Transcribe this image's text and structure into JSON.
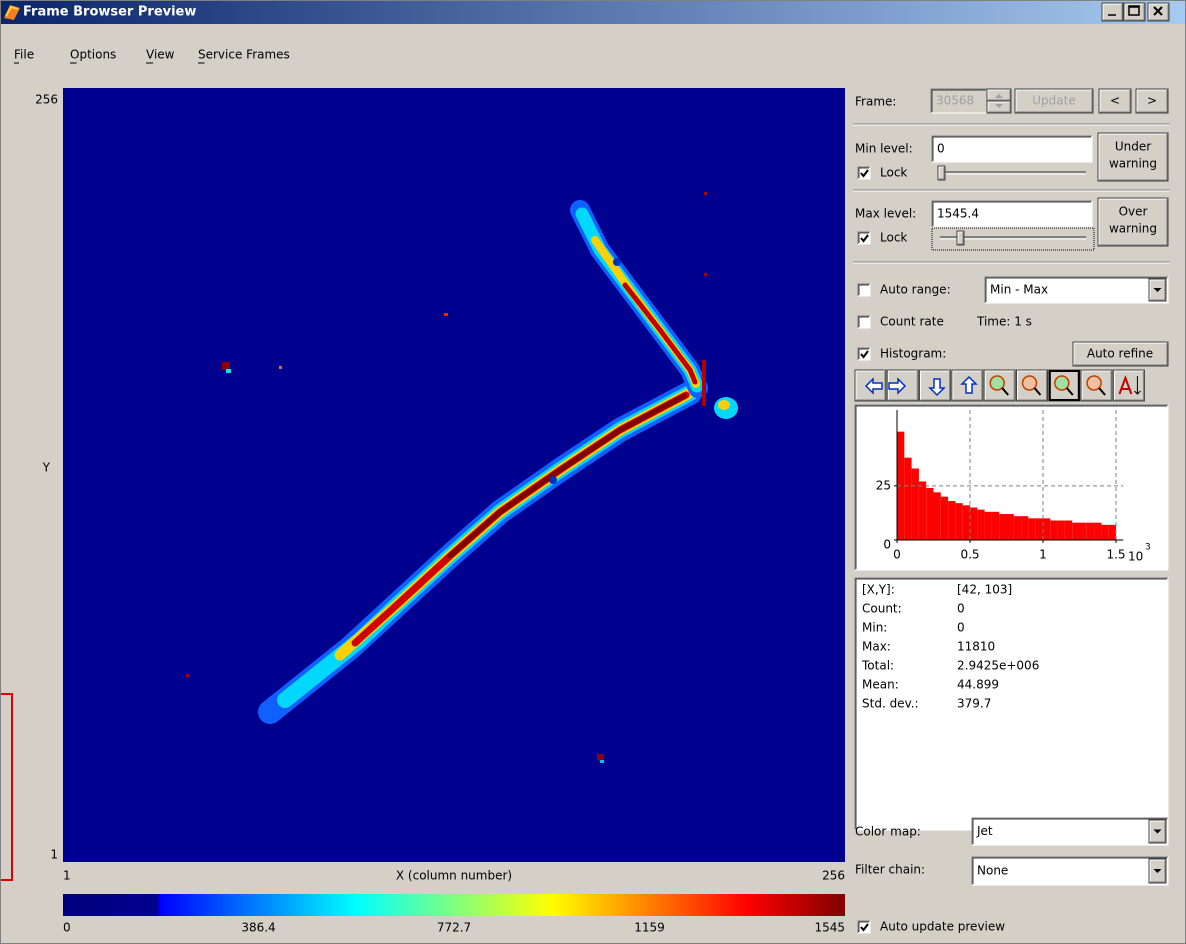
{
  "window": {
    "title": "Frame Browser Preview"
  },
  "menu": [
    "File",
    "Options",
    "View",
    "Service Frames"
  ],
  "image": {
    "y_max": "256",
    "y_min": "1",
    "y_label": "Y",
    "x_min": "1",
    "x_max": "256",
    "x_label": "X (column number)",
    "colorbar_ticks": [
      "0",
      "386.4",
      "772.7",
      "1159",
      "1545"
    ]
  },
  "frame": {
    "label": "Frame:",
    "value": "30568",
    "update": "Update",
    "prev": "<",
    "next": ">"
  },
  "min_level": {
    "label": "Min level:",
    "value": "0",
    "lock": "Lock",
    "lock_checked": true,
    "warning": [
      "Under",
      "warning"
    ]
  },
  "max_level": {
    "label": "Max level:",
    "value": "1545.4",
    "lock": "Lock",
    "lock_checked": true,
    "warning": [
      "Over",
      "warning"
    ]
  },
  "auto_range": {
    "label": "Auto range:",
    "checked": false,
    "value": "Min - Max"
  },
  "count_rate": {
    "label": "Count rate",
    "checked": false,
    "time": "Time: 1 s"
  },
  "histogram": {
    "label": "Histogram:",
    "checked": true,
    "auto_refine": "Auto refine"
  },
  "chart_data": {
    "type": "histogram",
    "bins": [
      0,
      0.05,
      0.1,
      0.15,
      0.2,
      0.25,
      0.3,
      0.35,
      0.4,
      0.45,
      0.5,
      0.55,
      0.6,
      0.65,
      0.7,
      0.75,
      0.8,
      0.85,
      0.9,
      0.95,
      1,
      1.05,
      1.1,
      1.15,
      1.2,
      1.25,
      1.3,
      1.35,
      1.4,
      1.45,
      1.5
    ],
    "values": [
      50,
      38,
      33,
      27,
      24,
      22,
      20,
      18,
      17,
      16,
      15,
      14,
      13,
      13,
      12,
      12,
      11,
      11,
      10,
      10,
      10,
      9,
      9,
      9,
      8,
      8,
      8,
      8,
      7,
      7
    ],
    "color": "#ff0000",
    "xlim": [
      0,
      1.55
    ],
    "ylim": [
      0,
      60
    ],
    "xticks": [
      0,
      0.5,
      1,
      1.5
    ],
    "yticks": [
      0,
      25
    ],
    "x_exponent": {
      "base": "10",
      "power": "3"
    },
    "grid": true
  },
  "stats": [
    {
      "label": "[X,Y]:",
      "value": "[42, 103]"
    },
    {
      "label": "Count:",
      "value": "0"
    },
    {
      "label": "Min:",
      "value": "0"
    },
    {
      "label": "Max:",
      "value": "11810"
    },
    {
      "label": "Total:",
      "value": "2.9425e+006"
    },
    {
      "label": "Mean:",
      "value": "44.899"
    },
    {
      "label": "Std. dev.:",
      "value": "379.7"
    }
  ],
  "color_map": {
    "label": "Color map:",
    "value": "Jet"
  },
  "filter_chain": {
    "label": "Filter chain:",
    "value": "None"
  },
  "auto_update": {
    "label": "Auto update preview",
    "checked": true
  }
}
